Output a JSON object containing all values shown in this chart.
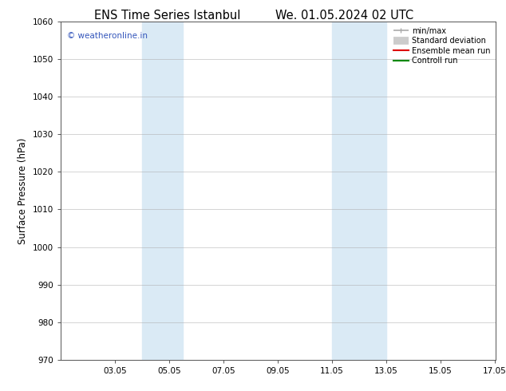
{
  "title_left": "ENS Time Series Istanbul",
  "title_right": "We. 01.05.2024 02 UTC",
  "ylabel": "Surface Pressure (hPa)",
  "ylim": [
    970,
    1060
  ],
  "yticks": [
    970,
    980,
    990,
    1000,
    1010,
    1020,
    1030,
    1040,
    1050,
    1060
  ],
  "xlim": [
    1.0,
    17.05
  ],
  "xtick_labels": [
    "03.05",
    "05.05",
    "07.05",
    "09.05",
    "11.05",
    "13.05",
    "15.05",
    "17.05"
  ],
  "xtick_positions": [
    3,
    5,
    7,
    9,
    11,
    13,
    15,
    17
  ],
  "shade_bands": [
    {
      "xmin": 4.0,
      "xmax": 5.5,
      "color": "#daeaf5"
    },
    {
      "xmin": 11.0,
      "xmax": 13.0,
      "color": "#daeaf5"
    }
  ],
  "watermark_text": "© weatheronline.in",
  "watermark_color": "#3355bb",
  "legend_entries": [
    {
      "label": "min/max",
      "color": "#aaaaaa",
      "lw": 1.2
    },
    {
      "label": "Standard deviation",
      "color": "#cccccc",
      "lw": 7
    },
    {
      "label": "Ensemble mean run",
      "color": "#dd0000",
      "lw": 1.5
    },
    {
      "label": "Controll run",
      "color": "#008800",
      "lw": 1.5
    }
  ],
  "background_color": "#ffffff",
  "grid_color": "#aaaaaa",
  "spine_color": "#555555",
  "tick_label_fontsize": 7.5,
  "ylabel_fontsize": 8.5,
  "title_fontsize": 10.5
}
